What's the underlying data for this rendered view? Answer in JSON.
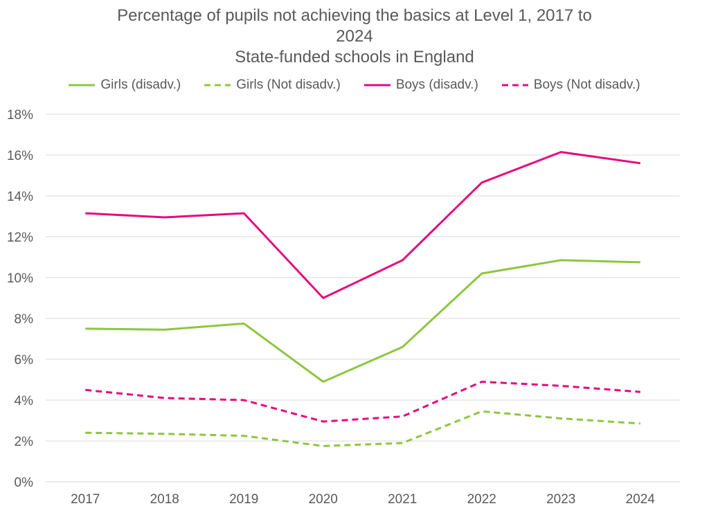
{
  "chart_data": {
    "type": "line",
    "title_lines": [
      "Percentage of pupils not achieving the basics at Level 1, 2017 to",
      "2024",
      "State-funded schools in England"
    ],
    "categories": [
      "2017",
      "2018",
      "2019",
      "2020",
      "2021",
      "2022",
      "2023",
      "2024"
    ],
    "y_ticks": [
      "0%",
      "2%",
      "4%",
      "6%",
      "8%",
      "10%",
      "12%",
      "14%",
      "16%",
      "18%"
    ],
    "ylim": [
      0,
      18
    ],
    "grid": true,
    "legend_position": "top",
    "series": [
      {
        "name": "Girls (disadv.)",
        "color": "#8DC63F",
        "dash": "solid",
        "values": [
          7.5,
          7.45,
          7.75,
          4.9,
          6.6,
          10.2,
          10.85,
          10.75
        ]
      },
      {
        "name": "Girls (Not disadv.)",
        "color": "#8DC63F",
        "dash": "dashed",
        "values": [
          2.4,
          2.35,
          2.25,
          1.75,
          1.9,
          3.45,
          3.1,
          2.85
        ]
      },
      {
        "name": "Boys (disadv.)",
        "color": "#E5097F",
        "dash": "solid",
        "values": [
          13.15,
          12.95,
          13.15,
          9.0,
          10.85,
          14.65,
          16.15,
          15.6
        ]
      },
      {
        "name": "Boys (Not disadv.)",
        "color": "#E5097F",
        "dash": "dashed",
        "values": [
          4.5,
          4.1,
          4.0,
          2.95,
          3.2,
          4.9,
          4.7,
          4.4
        ]
      }
    ]
  }
}
